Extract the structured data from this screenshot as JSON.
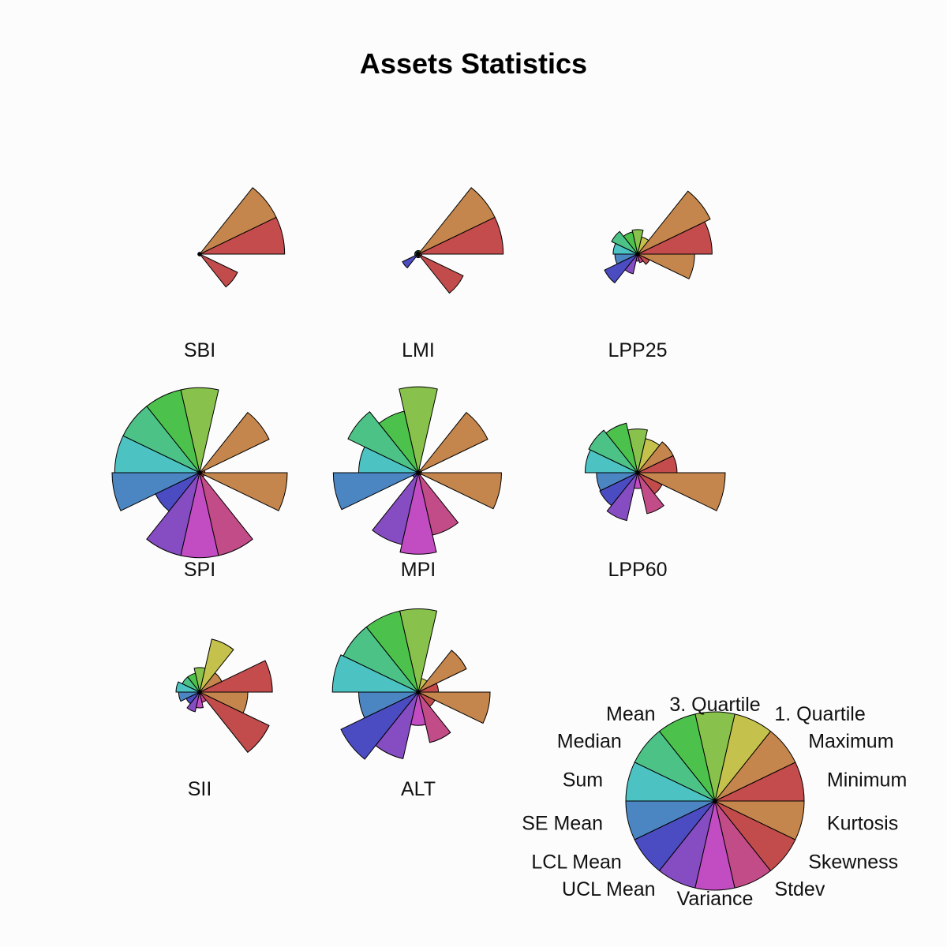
{
  "chart_data": {
    "type": "segment-star",
    "title": "Assets Statistics",
    "variables": [
      "Minimum",
      "Maximum",
      "1. Quartile",
      "3. Quartile",
      "Mean",
      "Median",
      "Sum",
      "SE Mean",
      "LCL Mean",
      "UCL Mean",
      "Variance",
      "Stdev",
      "Skewness",
      "Kurtosis"
    ],
    "colors": [
      "#c44c4c",
      "#c4864c",
      "#c4c24c",
      "#88c24c",
      "#4cc24c",
      "#4cc286",
      "#4cc2c2",
      "#4c86c2",
      "#4c4cc2",
      "#864cc2",
      "#c24cc2",
      "#c24c88",
      "#c24c4c",
      "#c4864c"
    ],
    "scale_range": [
      0,
      1
    ],
    "stars": [
      {
        "name": "SBI",
        "values": [
          0.97,
          0.97,
          0.02,
          0.02,
          0.02,
          0.02,
          0.02,
          0.02,
          0.02,
          0.02,
          0.02,
          0.02,
          0.48,
          0.02
        ]
      },
      {
        "name": "LMI",
        "values": [
          0.97,
          0.97,
          0.04,
          0.04,
          0.04,
          0.04,
          0.04,
          0.04,
          0.2,
          0.04,
          0.04,
          0.04,
          0.57,
          0.04
        ]
      },
      {
        "name": "LPP25",
        "values": [
          0.85,
          0.92,
          0.2,
          0.28,
          0.26,
          0.33,
          0.28,
          0.26,
          0.42,
          0.23,
          0.08,
          0.1,
          0.15,
          0.65
        ]
      },
      {
        "name": "SPI",
        "values": [
          0.06,
          0.88,
          0.02,
          0.97,
          0.97,
          0.97,
          0.97,
          1.0,
          0.56,
          0.97,
          0.97,
          0.97,
          0.06,
          1.0
        ]
      },
      {
        "name": "MPI",
        "values": [
          0.04,
          0.88,
          0.04,
          0.98,
          0.72,
          0.89,
          0.68,
          0.97,
          0.07,
          0.84,
          0.93,
          0.73,
          0.04,
          0.95
        ]
      },
      {
        "name": "LPP60",
        "values": [
          0.45,
          0.45,
          0.4,
          0.5,
          0.58,
          0.62,
          0.6,
          0.47,
          0.48,
          0.56,
          0.18,
          0.48,
          0.31,
          1.0
        ]
      },
      {
        "name": "SII",
        "values": [
          0.83,
          0.28,
          0.62,
          0.28,
          0.22,
          0.22,
          0.27,
          0.24,
          0.17,
          0.23,
          0.18,
          0.12,
          0.88,
          0.55
        ]
      },
      {
        "name": "ALT",
        "values": [
          0.23,
          0.61,
          0.16,
          0.95,
          0.95,
          0.95,
          0.98,
          0.68,
          0.98,
          0.78,
          0.38,
          0.59,
          0.21,
          0.82
        ]
      }
    ],
    "key": {
      "values": [
        1,
        1,
        1,
        1,
        1,
        1,
        1,
        1,
        1,
        1,
        1,
        1,
        1,
        1
      ]
    }
  }
}
